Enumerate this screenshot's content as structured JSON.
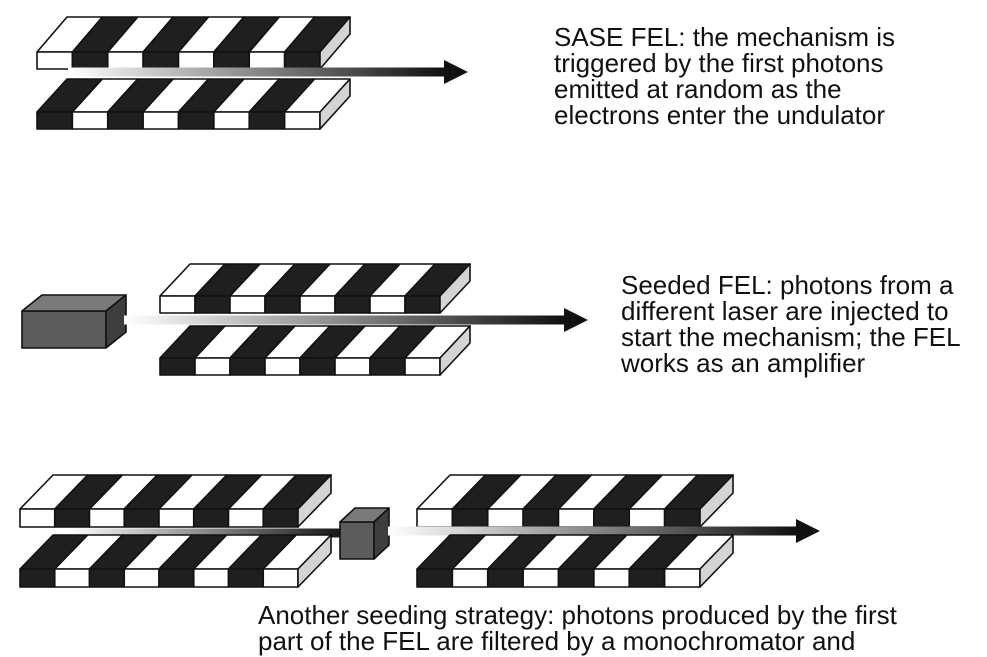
{
  "diagram": {
    "colors": {
      "stripe_dark": "#1f1f1f",
      "stripe_light": "#ffffff",
      "side_face": "#d4d4d4",
      "top_face_dark": "#2a2a2a",
      "box_front": "#5c5c5c",
      "box_top": "#7a7a7a",
      "box_side": "#3e3e3e",
      "beam_start": "#ffffff",
      "beam_end": "#111111",
      "caption_text": "#111111"
    },
    "panels": [
      {
        "id": "sase",
        "caption_lines": [
          "SASE FEL: the mechanism is",
          "triggered by the first photons",
          "emitted at random as the",
          "electrons enter the undulator"
        ]
      },
      {
        "id": "seeded",
        "caption_lines": [
          "Seeded FEL: photons from a",
          "different laser are injected to",
          "start the mechanism; the FEL",
          "works as an amplifier"
        ]
      },
      {
        "id": "another",
        "caption_lines": [
          "Another seeding strategy: photons produced by the first",
          "part of the FEL are filtered by a monochromator and"
        ]
      }
    ]
  }
}
